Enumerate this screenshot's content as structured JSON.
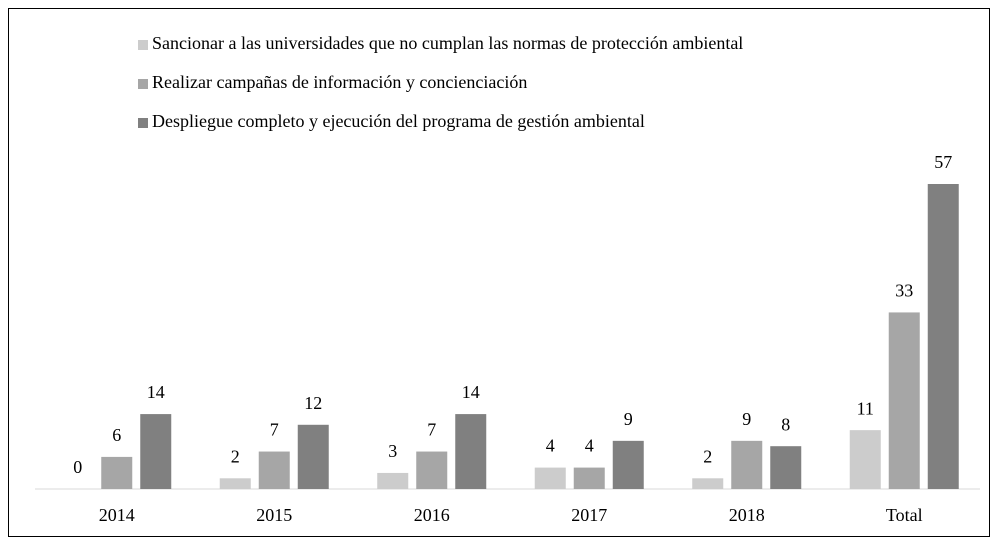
{
  "chart_data": {
    "type": "bar",
    "categories": [
      "2014",
      "2015",
      "2016",
      "2017",
      "2018",
      "Total"
    ],
    "series": [
      {
        "name": "Sancionar a las universidades que no cumplan las normas de protección ambiental",
        "color": "#cccccc",
        "values": [
          0,
          2,
          3,
          4,
          2,
          11
        ]
      },
      {
        "name": "Realizar campañas de información y concienciación",
        "color": "#a6a6a6",
        "values": [
          6,
          7,
          7,
          4,
          9,
          33
        ]
      },
      {
        "name": "Despliegue completo y ejecución del programa de gestión ambiental",
        "color": "#808080",
        "values": [
          14,
          12,
          14,
          9,
          8,
          57
        ]
      }
    ],
    "legend": "top"
  }
}
